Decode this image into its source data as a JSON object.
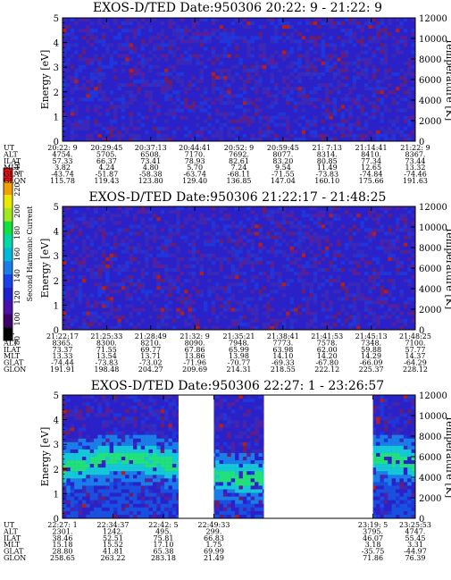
{
  "colorbar": {
    "label": "Second Harmonic Current",
    "ticks": [
      "80",
      "100",
      "120",
      "140",
      "160",
      "180",
      "200",
      "220",
      "240"
    ],
    "colors": [
      "#000000",
      "#3c006a",
      "#4a10a8",
      "#2020cc",
      "#1a40e8",
      "#1a7de8",
      "#00b8d8",
      "#00d8a8",
      "#10e040",
      "#a0e820",
      "#e8e800",
      "#f0a000",
      "#e81010"
    ]
  },
  "chart_data": [
    {
      "type": "heatmap",
      "title": "EXOS-D/TED   Date:950306  20:22: 9 - 21:22: 9",
      "ylabel": "Energy [eV]",
      "y2label": "Temperature [K]",
      "ylim": [
        0,
        5
      ],
      "yticks": [
        "0",
        "1",
        "2",
        "3",
        "4",
        "5"
      ],
      "y2lim": [
        0,
        12000
      ],
      "y2ticks": [
        "0",
        "2000",
        "4000",
        "6000",
        "8000",
        "10000",
        "12000"
      ],
      "pattern": "noise",
      "gaps": [],
      "table": {
        "labels": [
          "UT",
          "ALT",
          "ILAT",
          "MLT",
          "GLAT",
          "GLON"
        ],
        "columns": [
          [
            "20:22: 9",
            "4754.",
            "57.33",
            "3.82",
            "-43.74",
            "115.78"
          ],
          [
            "20:29:45",
            "5705.",
            "66.37",
            "4.24",
            "-51.87",
            "119.43"
          ],
          [
            "20:37:13",
            "6508.",
            "73.41",
            "4.80",
            "-58.38",
            "123.80"
          ],
          [
            "20:44:41",
            "7170.",
            "78.93",
            "5.70",
            "-63.74",
            "129.40"
          ],
          [
            "20:52: 9",
            "7692.",
            "82.61",
            "7.24",
            "-68.11",
            "136.85"
          ],
          [
            "20:59:45",
            "8077.",
            "83.20",
            "9.54",
            "-71.55",
            "147.04"
          ],
          [
            "21: 7:13",
            "8314.",
            "80.85",
            "11.49",
            "-73.83",
            "160.10"
          ],
          [
            "21:14:41",
            "8410.",
            "77.34",
            "12.65",
            "-74.84",
            "175.66"
          ],
          [
            "21:22: 9",
            "8367.",
            "73.44",
            "13.32",
            "-74.46",
            "191.63"
          ]
        ]
      }
    },
    {
      "type": "heatmap",
      "title": "EXOS-D/TED   Date:950306  21:22:17 - 21:48:25",
      "ylabel": "Energy [eV]",
      "y2label": "Temperature [K]",
      "ylim": [
        0,
        5
      ],
      "yticks": [
        "0",
        "1",
        "2",
        "3",
        "4",
        "5"
      ],
      "y2lim": [
        0,
        12000
      ],
      "y2ticks": [
        "0",
        "2000",
        "4000",
        "6000",
        "8000",
        "10000",
        "12000"
      ],
      "pattern": "noise",
      "gaps": [],
      "table": {
        "labels": [
          "UT",
          "ALT",
          "ILAT",
          "MLT",
          "GLAT",
          "GLON"
        ],
        "columns": [
          [
            "21:22:17",
            "8365.",
            "73.37",
            "13.33",
            "-74.44",
            "191.91"
          ],
          [
            "21:25:33",
            "8300.",
            "71.55",
            "13.54",
            "-73.83",
            "198.48"
          ],
          [
            "21:28:49",
            "8210.",
            "69.77",
            "13.71",
            "-73.02",
            "204.27"
          ],
          [
            "21:32: 9",
            "8090.",
            "67.86",
            "13.86",
            "-71.96",
            "209.69"
          ],
          [
            "21:35:21",
            "7948.",
            "65.99",
            "13.98",
            "-70.77",
            "214.31"
          ],
          [
            "21:38:41",
            "7773.",
            "63.98",
            "14.10",
            "-69.33",
            "218.55"
          ],
          [
            "21:41:53",
            "7578.",
            "62.00",
            "14.20",
            "-67.80",
            "222.12"
          ],
          [
            "21:45:13",
            "7348.",
            "59.88",
            "14.29",
            "-66.09",
            "225.37"
          ],
          [
            "21:48:25",
            "7100.",
            "57.77",
            "14.37",
            "-64.29",
            "228.12"
          ]
        ]
      }
    },
    {
      "type": "heatmap",
      "title": "EXOS-D/TED   Date:950306  22:27: 1 - 23:26:57",
      "ylabel": "Energy [eV]",
      "y2label": "Temperature [K]",
      "ylim": [
        0,
        5
      ],
      "yticks": [
        "0",
        "1",
        "2",
        "3",
        "4",
        "5"
      ],
      "y2lim": [
        0,
        12000
      ],
      "y2ticks": [
        "0",
        "2000",
        "4000",
        "6000",
        "8000",
        "10000",
        "12000"
      ],
      "pattern": "band",
      "gaps": [
        [
          0.329,
          0.429
        ],
        [
          0.571,
          0.88
        ]
      ],
      "table": {
        "labels": [
          "UT",
          "ALT",
          "ILAT",
          "MLT",
          "GLAT",
          "GLON"
        ],
        "columns": [
          [
            "22:27: 1",
            "2301.",
            "38.46",
            "15.18",
            "28.80",
            "258.65"
          ],
          [
            "22:34:37",
            "1242.",
            "52.51",
            "15.52",
            "41.81",
            "263.22"
          ],
          [
            "22:42: 5",
            "495.",
            "75.81",
            "17.10",
            "65.38",
            "283.18"
          ],
          [
            "22:49:33",
            "299.",
            "66.83",
            "1.75",
            "69.99",
            "21.49"
          ],
          [
            "23:19: 5",
            "3795.",
            "46.07",
            "3.18",
            "-35.75",
            "71.86"
          ],
          [
            "23:25:53",
            "4747.",
            "55.45",
            "3.31",
            "-44.97",
            "76.39"
          ]
        ]
      }
    }
  ]
}
